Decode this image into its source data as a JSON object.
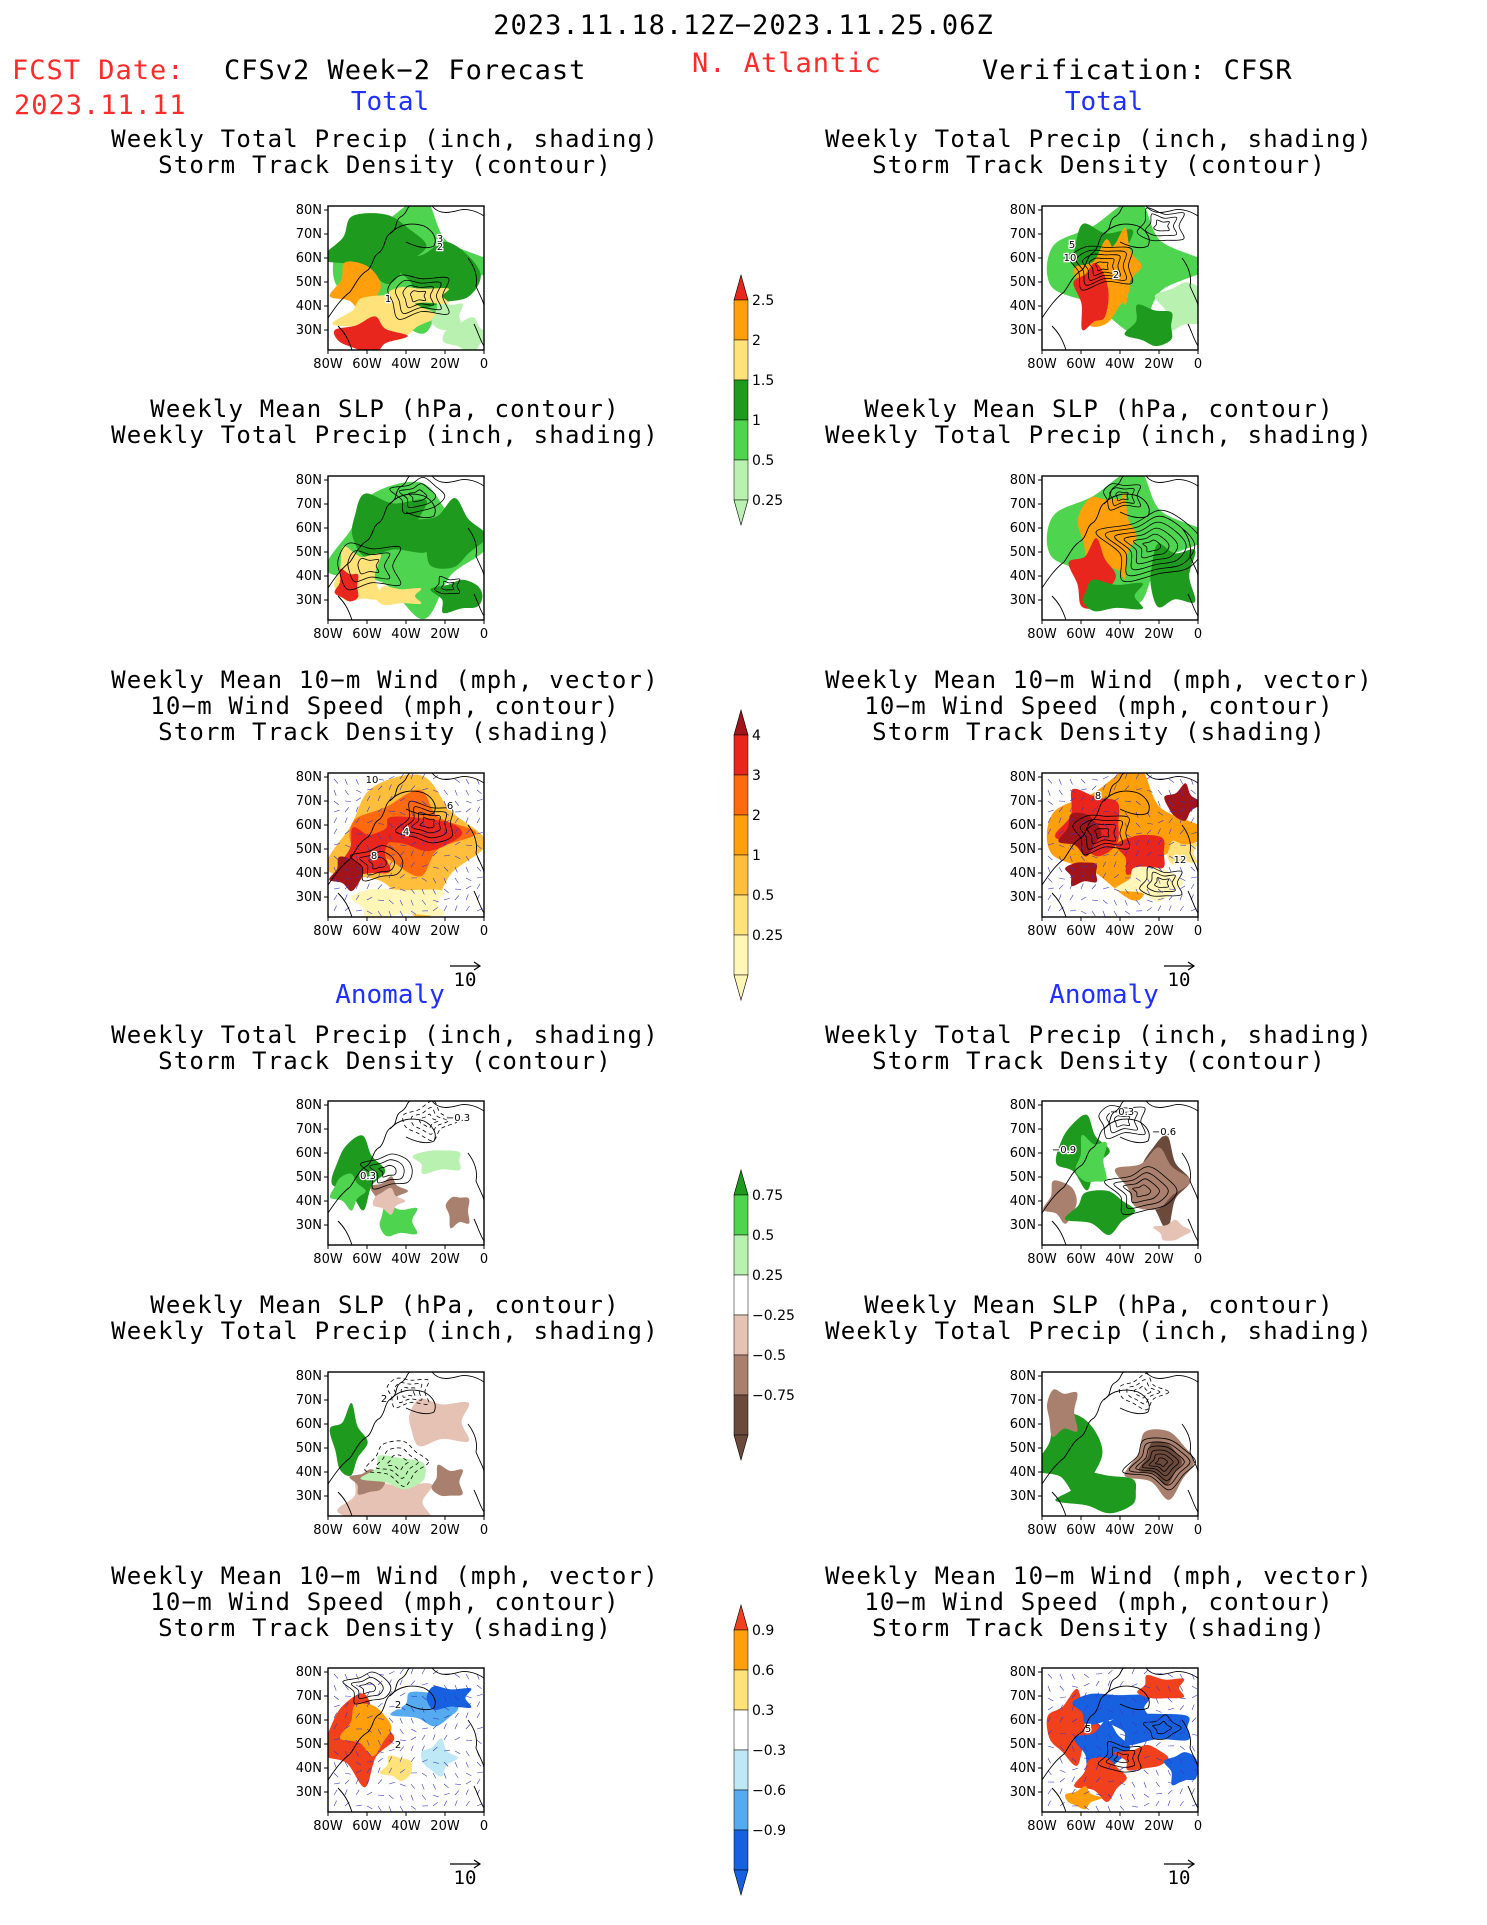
{
  "header": {
    "period": "2023.11.18.12Z−2023.11.25.06Z",
    "fcst_label": "FCST Date:",
    "fcst_date": "2023.11.11",
    "model": "CFSv2 Week−2 Forecast",
    "region": "N. Atlantic",
    "verification": "Verification: CFSR"
  },
  "sections": {
    "total": "Total",
    "anomaly": "Anomaly"
  },
  "titles": {
    "precip_storm": [
      "Weekly Total Precip (inch, shading)",
      "Storm Track Density (contour)"
    ],
    "slp_precip": [
      "Weekly Mean SLP (hPa, contour)",
      "Weekly Total Precip (inch, shading)"
    ],
    "wind_storm": [
      "Weekly Mean 10−m Wind (mph, vector)",
      "10−m Wind Speed (mph, contour)",
      "Storm Track Density (shading)"
    ]
  },
  "axes": {
    "lat_labels": [
      "80N",
      "70N",
      "60N",
      "50N",
      "40N",
      "30N"
    ],
    "lon_labels": [
      "80W",
      "60W",
      "40W",
      "20W",
      "0"
    ]
  },
  "vector_ref": "10",
  "colorbars": {
    "precip_total": {
      "labels": [
        "2.5",
        "2",
        "1.5",
        "1",
        "0.5",
        "0.25"
      ],
      "colors": [
        "#e8261e",
        "#ff9f0c",
        "#ffe27a",
        "#1e9a1e",
        "#4fd44f",
        "#b9f2b0"
      ]
    },
    "storm_total": {
      "labels": [
        "4",
        "3",
        "2",
        "1",
        "0.5",
        "0.25"
      ],
      "colors": [
        "#a0141a",
        "#e8261e",
        "#ff6a10",
        "#ff9f0c",
        "#ffbe3c",
        "#ffe27a",
        "#fff6b8"
      ]
    },
    "precip_anom": {
      "labels": [
        "0.75",
        "0.5",
        "0.25",
        "−0.25",
        "−0.5",
        "−0.75"
      ],
      "colors": [
        "#1e9a1e",
        "#4fd44f",
        "#b9f2b0",
        "#ffffff",
        "#e6c2b4",
        "#a9806e",
        "#6b4a3c"
      ]
    },
    "storm_anom": {
      "labels": [
        "0.9",
        "0.6",
        "0.3",
        "−0.3",
        "−0.6",
        "−0.9"
      ],
      "colors": [
        "#f0401c",
        "#ff9f0c",
        "#ffe27a",
        "#ffffff",
        "#bfe8f7",
        "#55aaf0",
        "#1760e0"
      ]
    }
  },
  "panel_labels": {
    "f_total_1": [
      "3",
      "2",
      "1"
    ],
    "v_total_1": [
      "2",
      "5",
      "10"
    ],
    "f_total_3": [
      "10",
      "4",
      "6",
      "8"
    ],
    "v_total_3": [
      "8",
      "12"
    ],
    "f_anom_1": [
      "−0.3",
      "0.3"
    ],
    "v_anom_1": [
      "−0.3",
      "−0.6",
      "−0.9"
    ],
    "f_anom_2": [
      "2"
    ],
    "f_anom_3": [
      "2",
      "2"
    ],
    "v_anom_3": [
      "5"
    ]
  }
}
